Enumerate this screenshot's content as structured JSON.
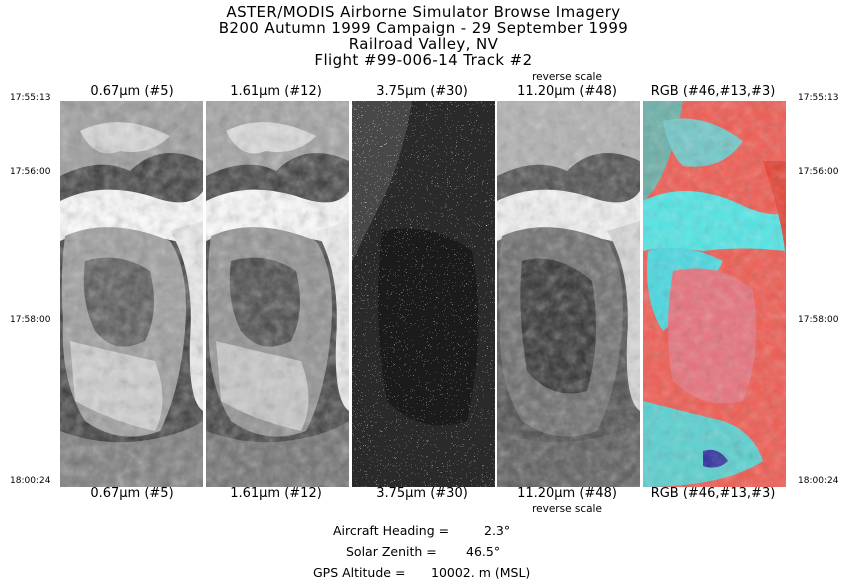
{
  "header": {
    "lines": [
      "ASTER/MODIS Airborne Simulator Browse Imagery",
      "B200 Autumn 1999 Campaign - 29 September 1999",
      "Railroad Valley, NV",
      "Flight #99-006-14 Track #2"
    ]
  },
  "panels": [
    {
      "label_top": "0.67μm (#5)",
      "label_bottom": "0.67μm (#5)",
      "note": ""
    },
    {
      "label_top": "1.61μm (#12)",
      "label_bottom": "1.61μm (#12)",
      "note": ""
    },
    {
      "label_top": "3.75μm (#30)",
      "label_bottom": "3.75μm (#30)",
      "note": ""
    },
    {
      "label_top": "11.20μm (#48)",
      "label_bottom": "11.20μm (#48)",
      "note": "reverse scale"
    },
    {
      "label_top": "RGB (#46,#13,#3)",
      "label_bottom": "RGB (#46,#13,#3)",
      "note": ""
    }
  ],
  "times": {
    "left": [
      "17:55:13",
      "17:56:00",
      "17:58:00",
      "18:00:24"
    ],
    "right": [
      "17:55:13",
      "17:56:00",
      "17:58:00",
      "18:00:24"
    ]
  },
  "info": {
    "heading_label": "Aircraft Heading =",
    "heading_value": "2.3°",
    "zenith_label": "Solar Zenith =",
    "zenith_value": "46.5°",
    "altitude_label": "GPS Altitude =",
    "altitude_value": "10002. m (MSL)"
  },
  "colors": {
    "background": "#ffffff",
    "rgb_red": "#f05a50",
    "rgb_cyan": "#50e6e6"
  }
}
